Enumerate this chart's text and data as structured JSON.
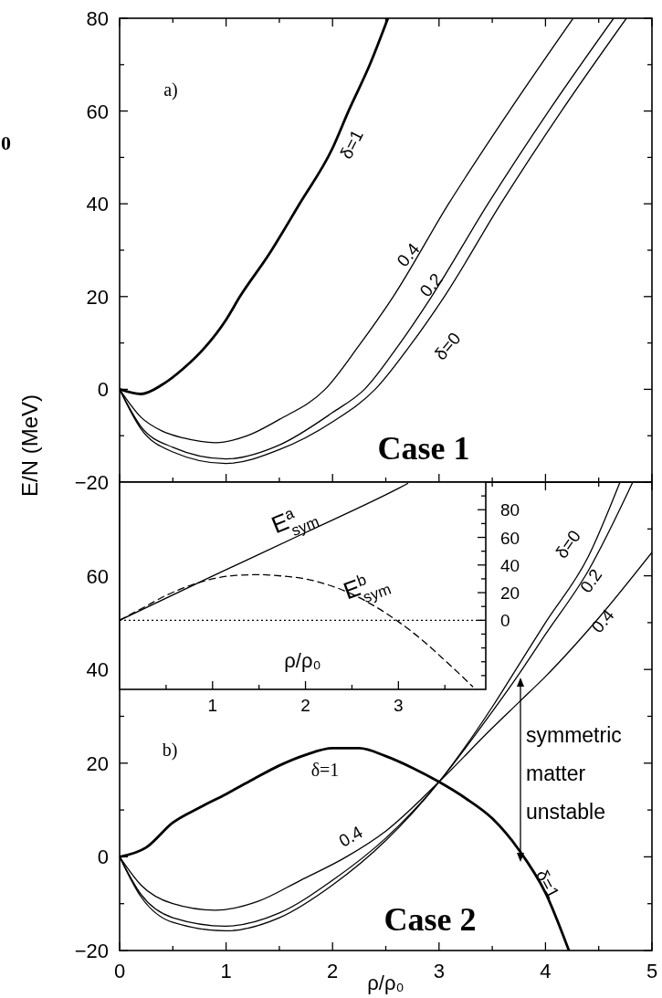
{
  "chart_data": [
    {
      "type": "line",
      "ylabel": "E/N (MeV)",
      "xlim": [
        0,
        5
      ],
      "ylim": [
        -20,
        80
      ],
      "tick_labels": "y",
      "xticks": [
        0,
        {
          "value": 0.5,
          "label": null
        },
        1,
        {
          "value": 1.5,
          "label": null
        },
        2,
        {
          "value": 2.5,
          "label": null
        },
        3,
        {
          "value": 3.5,
          "label": null
        },
        4,
        {
          "value": 4.5,
          "label": null
        },
        5
      ],
      "yticks": [
        -20,
        {
          "value": -10,
          "label": null
        },
        0,
        {
          "value": 10,
          "label": null
        },
        20,
        {
          "value": 30,
          "label": null
        },
        40,
        {
          "value": 50,
          "label": null
        },
        60,
        {
          "value": 70,
          "label": null
        },
        80
      ],
      "series": [
        {
          "color": "#000000",
          "x": [
            0,
            0.2,
            0.4,
            0.6,
            0.8,
            1,
            1.13,
            1.4,
            1.69,
            2,
            2.15,
            2.35,
            2.52
          ],
          "values": [
            0,
            -1,
            1,
            4.5,
            9,
            15,
            20,
            29,
            40,
            52,
            60,
            70,
            80
          ]
        },
        {
          "color": "#000000",
          "x": [
            0,
            0.2,
            0.4,
            0.6,
            0.9,
            1.2,
            1.5,
            1.93,
            2.25,
            2.57,
            3.09,
            3.66,
            4.26
          ],
          "values": [
            0,
            -6,
            -9,
            -10.5,
            -11.5,
            -10,
            -6.5,
            0,
            9.5,
            20,
            40,
            60,
            80
          ]
        },
        {
          "color": "#000000",
          "x": [
            0,
            0.2,
            0.5,
            1,
            1.5,
            2,
            2.3,
            2.62,
            2.93,
            3.46,
            4.03,
            4.64
          ],
          "values": [
            0,
            -8,
            -12.5,
            -15,
            -12,
            -5,
            0,
            9.5,
            20,
            40,
            60,
            80
          ]
        },
        {
          "color": "#000000",
          "x": [
            0,
            0.2,
            0.5,
            1,
            1.5,
            2,
            2.4,
            2.73,
            3.05,
            3.58,
            4.15,
            4.76
          ],
          "values": [
            0,
            -8.5,
            -13.5,
            -16,
            -13,
            -7,
            0,
            9.5,
            20,
            40,
            60,
            80
          ]
        }
      ],
      "annotations": [
        "0",
        "a)",
        "Case 1",
        "δ=1",
        "0.4",
        "0.2",
        "δ=0"
      ]
    },
    {
      "type": "line",
      "xlabel": "ρ/ρ₀",
      "xlim": [
        0,
        5
      ],
      "ylim": [
        -20,
        80
      ],
      "xticks": [
        0,
        {
          "value": 0.5,
          "label": null
        },
        1,
        {
          "value": 1.5,
          "label": null
        },
        2,
        {
          "value": 2.5,
          "label": null
        },
        3,
        {
          "value": 3.5,
          "label": null
        },
        4,
        {
          "value": 4.5,
          "label": null
        },
        5
      ],
      "yticks": [
        -20,
        {
          "value": -10,
          "label": null
        },
        0,
        {
          "value": 10,
          "label": null
        },
        20,
        {
          "value": 30,
          "label": null
        },
        40,
        {
          "value": 50,
          "label": null
        },
        60,
        {
          "value": 70,
          "label": null
        },
        {
          "value": 80,
          "label": null
        }
      ],
      "series": [
        {
          "color": "#000000",
          "x": [
            0,
            0.25,
            0.5,
            0.75,
            1,
            1.25,
            1.5,
            1.75,
            2,
            2.25,
            2.5,
            2.75,
            3,
            3.25,
            3.5,
            3.75,
            4,
            4.22
          ],
          "values": [
            0,
            2,
            7.3,
            10.5,
            13.4,
            16.5,
            19.5,
            21.8,
            23.2,
            23.2,
            21.5,
            19,
            16,
            12.5,
            8.2,
            1.5,
            -7.7,
            -20
          ]
        },
        {
          "color": "#000000",
          "x": [
            0,
            0.2,
            0.5,
            0.9,
            1.3,
            1.7,
            2.13,
            2.5,
            3,
            3.5,
            3.75,
            4,
            4.5,
            5
          ],
          "values": [
            0,
            -6,
            -10,
            -11.4,
            -9.5,
            -5,
            0,
            5.5,
            16,
            27.5,
            33,
            38.5,
            51,
            65
          ]
        },
        {
          "color": "#000000",
          "x": [
            0,
            0.2,
            0.5,
            1,
            1.5,
            2,
            2.5,
            3,
            3.5,
            3.75,
            4,
            4.4,
            4.82
          ],
          "values": [
            0,
            -8,
            -13,
            -14.8,
            -12,
            -5,
            4,
            16,
            31,
            39,
            47.5,
            61,
            80
          ]
        },
        {
          "color": "#000000",
          "x": [
            0,
            0.2,
            0.5,
            1,
            1.5,
            2,
            2.5,
            3,
            3.5,
            3.75,
            4,
            4.4,
            4.7
          ],
          "values": [
            0,
            -8.5,
            -14,
            -15.8,
            -13,
            -6,
            3.5,
            16,
            32,
            41,
            50,
            64,
            80
          ]
        }
      ],
      "annotations": [
        "b)",
        "Case 2",
        "δ=1",
        "0.4",
        "δ=1",
        "δ=0",
        "0.2",
        "0.4",
        "symmetric matter unstable"
      ]
    },
    {
      "type": "line",
      "xlabel": "ρ/ρ₀",
      "xlim": [
        0,
        3.94
      ],
      "ylim": [
        -50,
        100
      ],
      "xticks": [
        {
          "value": 0.5,
          "label": null
        },
        1,
        {
          "value": 1.5,
          "label": null
        },
        2,
        {
          "value": 2.5,
          "label": null
        },
        3,
        {
          "value": 3.5,
          "label": null
        }
      ],
      "yticks": [
        {
          "value": -40,
          "label": null
        },
        {
          "value": -30,
          "label": null
        },
        {
          "value": -20,
          "label": null
        },
        {
          "value": -10,
          "label": null
        },
        0,
        {
          "value": 10,
          "label": null
        },
        20,
        {
          "value": 30,
          "label": null
        },
        40,
        {
          "value": 50,
          "label": null
        },
        60,
        {
          "value": 70,
          "label": null
        },
        80,
        {
          "value": 90,
          "label": null
        }
      ],
      "ref_lines": [
        {
          "axis": "y",
          "value": 0,
          "line_style": "dotted",
          "color": "#000000"
        }
      ],
      "series": [
        {
          "color": "#000000",
          "line_style": "solid",
          "x": [
            0,
            1,
            2,
            3,
            3.1
          ],
          "values": [
            0,
            32,
            63.5,
            95.5,
            99
          ]
        },
        {
          "color": "#000000",
          "line_style": "dashed",
          "x": [
            0,
            0.25,
            0.5,
            0.75,
            1,
            1.25,
            1.5,
            1.75,
            2,
            2.25,
            2.5,
            2.75,
            3,
            3.25,
            3.5,
            3.8
          ],
          "values": [
            0,
            9,
            18,
            25,
            30,
            32.5,
            33,
            32,
            30,
            25.5,
            19,
            10,
            -1,
            -14,
            -29,
            -48
          ]
        }
      ],
      "annotations": [
        "E$^{a}$$_{sym}$",
        "E$^{b}$$_{sym}$"
      ]
    }
  ]
}
